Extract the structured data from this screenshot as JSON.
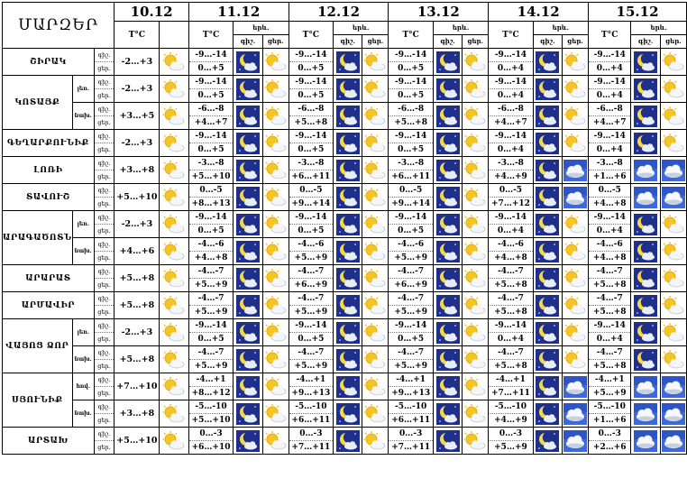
{
  "header": {
    "title": "ՄԱՐԶԵՐ",
    "dates": [
      "10.12",
      "11.12",
      "12.12",
      "13.12",
      "14.12",
      "15.12"
    ],
    "temp_label": "T°C",
    "period_label": "երև.",
    "night_label": "գիշ.",
    "day_label": "ցեր."
  },
  "tod": {
    "night": "գիշ.",
    "day": "ցեր."
  },
  "regions": [
    {
      "name": "ՇԻՐԱԿ",
      "rows": [
        {
          "sub": "",
          "d0": "-2…+3",
          "days": [
            [
              "-9…-14",
              "0…+5"
            ],
            [
              "-9…-14",
              "0…+5"
            ],
            [
              "-9…-14",
              "0…+5"
            ],
            [
              "-9…-14",
              "0…+4"
            ],
            [
              "-9…-14",
              "0…+4"
            ]
          ],
          "icons": [
            [
              "moon",
              "sun"
            ],
            [
              "moon",
              "sun"
            ],
            [
              "moon",
              "sun"
            ],
            [
              "moon",
              "sun"
            ],
            [
              "moon",
              "sun"
            ]
          ]
        }
      ]
    },
    {
      "name": "ԿՈՏԱՅՔ",
      "rows": [
        {
          "sub": "լեռ.",
          "d0": "-2…+3",
          "days": [
            [
              "-9…-14",
              "0…+5"
            ],
            [
              "-9…-14",
              "0…+5"
            ],
            [
              "-9…-14",
              "0…+5"
            ],
            [
              "-9…-14",
              "0…+4"
            ],
            [
              "-9…-14",
              "0…+4"
            ]
          ],
          "icons": [
            [
              "moon",
              "sun"
            ],
            [
              "moon",
              "sun"
            ],
            [
              "moon",
              "sun"
            ],
            [
              "moon",
              "sun"
            ],
            [
              "moon",
              "sun"
            ]
          ]
        },
        {
          "sub": "նախ.",
          "d0": "+3…+5",
          "days": [
            [
              "-6…-8",
              "+4…+7"
            ],
            [
              "-6…-8",
              "+5…+8"
            ],
            [
              "-6…-8",
              "+5…+8"
            ],
            [
              "-6…-8",
              "+4…+7"
            ],
            [
              "-6…-8",
              "+4…+7"
            ]
          ],
          "icons": [
            [
              "moon",
              "sun"
            ],
            [
              "moon",
              "sun"
            ],
            [
              "moon",
              "sun"
            ],
            [
              "moon",
              "sun"
            ],
            [
              "moon",
              "sun"
            ]
          ]
        }
      ]
    },
    {
      "name": "ԳԵՂԱՐՔՈՒՆԻՔ",
      "rows": [
        {
          "sub": "",
          "d0": "-2…+3",
          "days": [
            [
              "-9…-14",
              "0…+5"
            ],
            [
              "-9…-14",
              "0…+5"
            ],
            [
              "-9…-14",
              "0…+5"
            ],
            [
              "-9…-14",
              "0…+4"
            ],
            [
              "-9…-14",
              "0…+4"
            ]
          ],
          "icons": [
            [
              "moon",
              "sun"
            ],
            [
              "moon",
              "sun"
            ],
            [
              "moon",
              "sun"
            ],
            [
              "moon",
              "sun"
            ],
            [
              "moon",
              "sun"
            ]
          ]
        }
      ]
    },
    {
      "name": "ԼՈՌԻ",
      "rows": [
        {
          "sub": "",
          "d0": "+3…+8",
          "days": [
            [
              "-3…-8",
              "+5…+10"
            ],
            [
              "-3…-8",
              "+6…+11"
            ],
            [
              "-3…-8",
              "+6…+11"
            ],
            [
              "-3…-8",
              "+4…+9"
            ],
            [
              "-3…-8",
              "+1…+6"
            ]
          ],
          "icons": [
            [
              "moon",
              "sun"
            ],
            [
              "moon",
              "sun"
            ],
            [
              "moon",
              "sun"
            ],
            [
              "moon",
              "cloud"
            ],
            [
              "cloud",
              "cloud"
            ]
          ]
        }
      ]
    },
    {
      "name": "ՏԱՎՈՒՇ",
      "rows": [
        {
          "sub": "",
          "d0": "+5…+10",
          "days": [
            [
              "0…-5",
              "+8…+13"
            ],
            [
              "0…-5",
              "+9…+14"
            ],
            [
              "0…-5",
              "+9…+14"
            ],
            [
              "0…-5",
              "+7…+12"
            ],
            [
              "0…-5",
              "+4…+8"
            ]
          ],
          "icons": [
            [
              "moon",
              "sun"
            ],
            [
              "moon",
              "sun"
            ],
            [
              "moon",
              "sun"
            ],
            [
              "moon",
              "cloud"
            ],
            [
              "cloud",
              "cloud"
            ]
          ]
        }
      ]
    },
    {
      "name": "ԱՐԱԳԱԾՈՏՆ",
      "rows": [
        {
          "sub": "լեռ.",
          "d0": "-2…+3",
          "days": [
            [
              "-9…-14",
              "0…+5"
            ],
            [
              "-9…-14",
              "0…+5"
            ],
            [
              "-9…-14",
              "0…+5"
            ],
            [
              "-9…-14",
              "0…+4"
            ],
            [
              "-9…-14",
              "0…+4"
            ]
          ],
          "icons": [
            [
              "moon",
              "sun"
            ],
            [
              "moon",
              "sun"
            ],
            [
              "moon",
              "sun"
            ],
            [
              "moon",
              "sun"
            ],
            [
              "moon",
              "sun"
            ]
          ]
        },
        {
          "sub": "նախ.",
          "d0": "+4…+6",
          "days": [
            [
              "-4…-6",
              "+4…+8"
            ],
            [
              "-4…-6",
              "+5…+9"
            ],
            [
              "-4…-6",
              "+5…+9"
            ],
            [
              "-4…-6",
              "+4…+8"
            ],
            [
              "-4…-6",
              "+4…+8"
            ]
          ],
          "icons": [
            [
              "moon",
              "sun"
            ],
            [
              "moon",
              "sun"
            ],
            [
              "moon",
              "sun"
            ],
            [
              "moon",
              "sun"
            ],
            [
              "moon",
              "sun"
            ]
          ]
        }
      ]
    },
    {
      "name": "ԱՐԱՐԱՏ",
      "rows": [
        {
          "sub": "",
          "d0": "+5…+8",
          "days": [
            [
              "-4…-7",
              "+5…+9"
            ],
            [
              "-4…-7",
              "+6…+9"
            ],
            [
              "-4…-7",
              "+6…+9"
            ],
            [
              "-4…-7",
              "+5…+8"
            ],
            [
              "-4…-7",
              "+5…+8"
            ]
          ],
          "icons": [
            [
              "moon",
              "sun"
            ],
            [
              "moon",
              "sun"
            ],
            [
              "moon",
              "sun"
            ],
            [
              "moon",
              "sun"
            ],
            [
              "moon",
              "sun"
            ]
          ]
        }
      ]
    },
    {
      "name": "ԱՐՄԱՎԻՐ",
      "rows": [
        {
          "sub": "",
          "d0": "+5…+8",
          "days": [
            [
              "-4…-7",
              "+5…+9"
            ],
            [
              "-4…-7",
              "+5…+9"
            ],
            [
              "-4…-7",
              "+5…+9"
            ],
            [
              "-4…-7",
              "+5…+8"
            ],
            [
              "-4…-7",
              "+5…+8"
            ]
          ],
          "icons": [
            [
              "moon",
              "sun"
            ],
            [
              "moon",
              "sun"
            ],
            [
              "moon",
              "sun"
            ],
            [
              "moon",
              "sun"
            ],
            [
              "moon",
              "sun"
            ]
          ]
        }
      ]
    },
    {
      "name": "ՎԱՅՈՑ ՁՈՐ",
      "rows": [
        {
          "sub": "լեռ.",
          "d0": "-2…+3",
          "days": [
            [
              "-9…-14",
              "0…+5"
            ],
            [
              "-9…-14",
              "0…+5"
            ],
            [
              "-9…-14",
              "0…+5"
            ],
            [
              "-9…-14",
              "0…+4"
            ],
            [
              "-9…-14",
              "0…+4"
            ]
          ],
          "icons": [
            [
              "moon",
              "sun"
            ],
            [
              "moon",
              "sun"
            ],
            [
              "moon",
              "sun"
            ],
            [
              "moon",
              "sun"
            ],
            [
              "moon",
              "sun"
            ]
          ]
        },
        {
          "sub": "նախ.",
          "d0": "+5…+8",
          "days": [
            [
              "-4…-7",
              "+5…+9"
            ],
            [
              "-4…-7",
              "+5…+9"
            ],
            [
              "-4…-7",
              "+5…+9"
            ],
            [
              "-4…-7",
              "+5…+8"
            ],
            [
              "-4…-7",
              "+5…+8"
            ]
          ],
          "icons": [
            [
              "moon",
              "sun"
            ],
            [
              "moon",
              "sun"
            ],
            [
              "moon",
              "sun"
            ],
            [
              "moon",
              "sun"
            ],
            [
              "moon",
              "sun"
            ]
          ]
        }
      ]
    },
    {
      "name": "ՍՅՈՒՆԻՔ",
      "rows": [
        {
          "sub": "հով.",
          "d0": "+7…+10",
          "days": [
            [
              "-4…+1",
              "+8…+12"
            ],
            [
              "-4…+1",
              "+9…+13"
            ],
            [
              "-4…+1",
              "+9…+13"
            ],
            [
              "-4…+1",
              "+7…+11"
            ],
            [
              "-4…+1",
              "+5…+9"
            ]
          ],
          "icons": [
            [
              "moon",
              "sun"
            ],
            [
              "moon",
              "sun"
            ],
            [
              "moon",
              "sun"
            ],
            [
              "moon",
              "cloud"
            ],
            [
              "cloud",
              "cloud"
            ]
          ]
        },
        {
          "sub": "նախ.",
          "d0": "+3…+8",
          "days": [
            [
              "-5…-10",
              "+5…+10"
            ],
            [
              "-5…-10",
              "+6…+11"
            ],
            [
              "-5…-10",
              "+6…+11"
            ],
            [
              "-5…-10",
              "+4…+9"
            ],
            [
              "-5…-10",
              "+1…+6"
            ]
          ],
          "icons": [
            [
              "moon",
              "sun"
            ],
            [
              "moon",
              "sun"
            ],
            [
              "moon",
              "sun"
            ],
            [
              "moon",
              "cloud"
            ],
            [
              "cloud",
              "cloud"
            ]
          ]
        }
      ]
    },
    {
      "name": "ԱՐՏԱԽ",
      "rows": [
        {
          "sub": "",
          "d0": "+5…+10",
          "days": [
            [
              "0…-3",
              "+6…+10"
            ],
            [
              "0…-3",
              "+7…+11"
            ],
            [
              "0…-3",
              "+7…+11"
            ],
            [
              "0…-3",
              "+5…+9"
            ],
            [
              "0…-3",
              "+2…+6"
            ]
          ],
          "icons": [
            [
              "moon",
              "sun"
            ],
            [
              "moon",
              "sun"
            ],
            [
              "moon",
              "sun"
            ],
            [
              "moon",
              "cloud"
            ],
            [
              "cloud",
              "cloud"
            ]
          ]
        }
      ]
    }
  ]
}
